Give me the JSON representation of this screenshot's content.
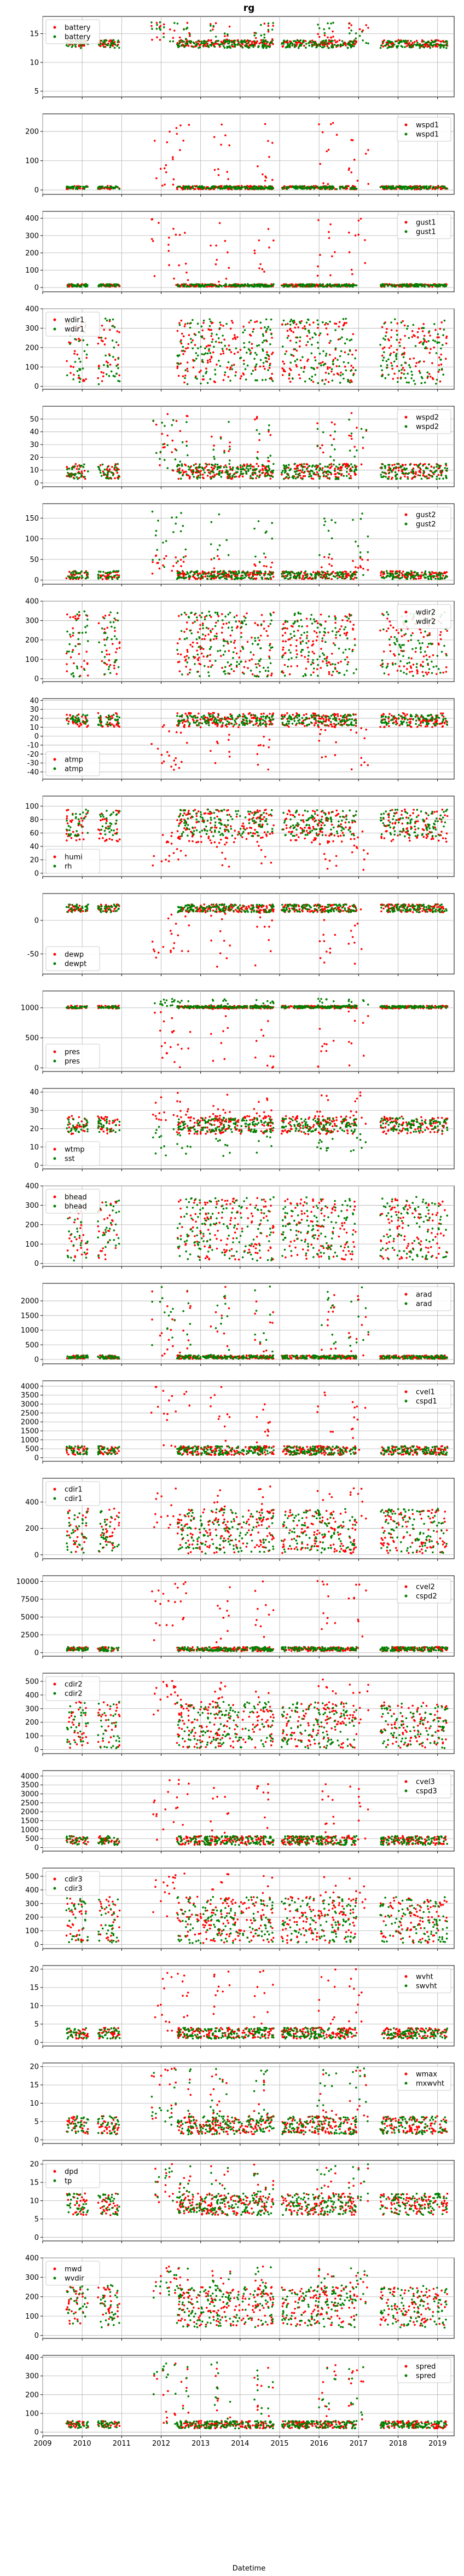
{
  "figure": {
    "title": "rg",
    "xlabel": "Datetime"
  },
  "chart_data": {
    "type": "scatter",
    "x_axis": {
      "type": "date",
      "range": [
        "2009-01-01",
        "2019-06-01"
      ],
      "ticks": [
        "2009",
        "2010",
        "2011",
        "2012",
        "2013",
        "2014",
        "2015",
        "2016",
        "2017",
        "2018",
        "2019"
      ]
    },
    "grid": true,
    "series_colors": {
      "first": "#ff0000",
      "second": "#008000"
    },
    "panels": [
      {
        "legend": [
          "battery",
          "battery"
        ],
        "legend_loc": "upper left",
        "ylim": [
          4,
          18
        ],
        "yticks": [
          "5",
          "10",
          "15"
        ],
        "level_red": 13.3,
        "level_green": 13.2,
        "spread_red": 0.6,
        "spread_green": 0.7,
        "spike_red": 17,
        "spike_green": 17,
        "outlier_mode": "both"
      },
      {
        "legend": [
          "wspd1",
          "wspd1"
        ],
        "legend_loc": "upper right",
        "ylim": [
          -15,
          260
        ],
        "yticks": [
          "0",
          "100",
          "200"
        ],
        "level_red": 8,
        "level_green": 8,
        "spread_red": 6,
        "spread_green": 5,
        "spike_red": 230,
        "spike_green": 60,
        "outlier_mode": "red"
      },
      {
        "legend": [
          "gust1",
          "gust1"
        ],
        "legend_loc": "upper right",
        "ylim": [
          -25,
          440
        ],
        "yticks": [
          "0",
          "100",
          "200",
          "300",
          "400"
        ],
        "level_red": 12,
        "level_green": 12,
        "spread_red": 8,
        "spread_green": 8,
        "spike_red": 400,
        "spike_green": 80,
        "outlier_mode": "red"
      },
      {
        "legend": [
          "wdir1",
          "wdir1"
        ],
        "legend_loc": "upper left",
        "ylim": [
          -15,
          400
        ],
        "yticks": [
          "0",
          "100",
          "200",
          "300",
          "400"
        ],
        "level_red": 180,
        "level_green": 180,
        "spread_red": 160,
        "spread_green": 170,
        "spike_red": 360,
        "spike_green": 360,
        "outlier_mode": "none"
      },
      {
        "legend": [
          "wspd2",
          "wspd2"
        ],
        "legend_loc": "upper right",
        "ylim": [
          -3,
          60
        ],
        "yticks": [
          "0",
          "10",
          "20",
          "30",
          "40",
          "50"
        ],
        "level_red": 9,
        "level_green": 9,
        "spread_red": 6,
        "spread_green": 6,
        "spike_red": 55,
        "spike_green": 50,
        "outlier_mode": "both"
      },
      {
        "legend": [
          "gust2",
          "gust2"
        ],
        "legend_loc": "upper right",
        "ylim": [
          -10,
          185
        ],
        "yticks": [
          "0",
          "50",
          "100",
          "150"
        ],
        "level_red": 12,
        "level_green": 12,
        "spread_red": 10,
        "spread_green": 10,
        "spike_red": 60,
        "spike_green": 170,
        "outlier_mode": "both"
      },
      {
        "legend": [
          "wdir2",
          "wdir2"
        ],
        "legend_loc": "upper right",
        "ylim": [
          -15,
          400
        ],
        "yticks": [
          "0",
          "100",
          "200",
          "300",
          "400"
        ],
        "level_red": 180,
        "level_green": 180,
        "spread_red": 165,
        "spread_green": 170,
        "spike_red": 360,
        "spike_green": 360,
        "outlier_mode": "none"
      },
      {
        "legend": [
          "atmp",
          "atmp"
        ],
        "legend_loc": "lower left",
        "ylim": [
          -48,
          42
        ],
        "yticks": [
          "-40",
          "-30",
          "-20",
          "-10",
          "0",
          "10",
          "20",
          "30",
          "40"
        ],
        "level_red": 18,
        "level_green": 18,
        "spread_red": 8,
        "spread_green": 6,
        "spike_red": -38,
        "spike_green": 35,
        "outlier_mode": "red"
      },
      {
        "legend": [
          "humi",
          "rh"
        ],
        "legend_loc": "lower left",
        "ylim": [
          -5,
          115
        ],
        "yticks": [
          "0",
          "20",
          "40",
          "60",
          "80",
          "100"
        ],
        "level_red": 70,
        "level_green": 75,
        "spread_red": 25,
        "spread_green": 20,
        "spike_red": 5,
        "spike_green": 100,
        "outlier_mode": "red"
      },
      {
        "legend": [
          "dewp",
          "dewpt"
        ],
        "legend_loc": "lower left",
        "ylim": [
          -80,
          40
        ],
        "yticks": [
          "-50",
          "0"
        ],
        "level_red": 18,
        "level_green": 18,
        "spread_red": 6,
        "spread_green": 6,
        "spike_red": -70,
        "spike_green": 30,
        "outlier_mode": "red"
      },
      {
        "legend": [
          "pres",
          "pres"
        ],
        "legend_loc": "lower left",
        "ylim": [
          -60,
          1280
        ],
        "yticks": [
          "0",
          "500",
          "1000"
        ],
        "level_red": 1012,
        "level_green": 1012,
        "spread_red": 25,
        "spread_green": 20,
        "spike_red": 0,
        "spike_green": 1150,
        "outlier_mode": "both"
      },
      {
        "legend": [
          "wtmp",
          "sst"
        ],
        "legend_loc": "lower left",
        "ylim": [
          -2,
          42
        ],
        "yticks": [
          "0",
          "10",
          "20",
          "30",
          "40"
        ],
        "level_red": 22,
        "level_green": 22,
        "spread_red": 5,
        "spread_green": 4,
        "spike_red": 40,
        "spike_green": 5,
        "outlier_mode": "both"
      },
      {
        "legend": [
          "bhead",
          "bhead"
        ],
        "legend_loc": "upper left",
        "ylim": [
          -15,
          400
        ],
        "yticks": [
          "0",
          "100",
          "200",
          "300",
          "400"
        ],
        "level_red": 180,
        "level_green": 180,
        "spread_red": 160,
        "spread_green": 165,
        "spike_red": 360,
        "spike_green": 360,
        "outlier_mode": "none"
      },
      {
        "legend": [
          "arad",
          "arad"
        ],
        "legend_loc": "upper right",
        "ylim": [
          -150,
          2600
        ],
        "yticks": [
          "0",
          "500",
          "1000",
          "1500",
          "2000"
        ],
        "level_red": 80,
        "level_green": 80,
        "spread_red": 60,
        "spread_green": 60,
        "spike_red": 2500,
        "spike_green": 2500,
        "outlier_mode": "both"
      },
      {
        "legend": [
          "cvel1",
          "cspd1"
        ],
        "legend_loc": "upper right",
        "ylim": [
          -200,
          4300
        ],
        "yticks": [
          "0",
          "500",
          "1000",
          "1500",
          "2000",
          "2500",
          "3000",
          "3500",
          "4000"
        ],
        "level_red": 400,
        "level_green": 400,
        "spread_red": 250,
        "spread_green": 250,
        "spike_red": 4000,
        "spike_green": 2500,
        "outlier_mode": "red"
      },
      {
        "legend": [
          "cdir1",
          "cdir1"
        ],
        "legend_loc": "upper left",
        "ylim": [
          -30,
          580
        ],
        "yticks": [
          "0",
          "200",
          "400"
        ],
        "level_red": 180,
        "level_green": 180,
        "spread_red": 170,
        "spread_green": 170,
        "spike_red": 520,
        "spike_green": 360,
        "outlier_mode": "red"
      },
      {
        "legend": [
          "cvel2",
          "cspd2"
        ],
        "legend_loc": "upper right",
        "ylim": [
          -500,
          10800
        ],
        "yticks": [
          "0",
          "2500",
          "5000",
          "7500",
          "10000"
        ],
        "level_red": 500,
        "level_green": 500,
        "spread_red": 300,
        "spread_green": 300,
        "spike_red": 10200,
        "spike_green": 3500,
        "outlier_mode": "red"
      },
      {
        "legend": [
          "cdir2",
          "cdir2"
        ],
        "legend_loc": "upper left",
        "ylim": [
          -30,
          560
        ],
        "yticks": [
          "0",
          "100",
          "200",
          "300",
          "400",
          "500"
        ],
        "level_red": 180,
        "level_green": 180,
        "spread_red": 170,
        "spread_green": 170,
        "spike_red": 520,
        "spike_green": 360,
        "outlier_mode": "red"
      },
      {
        "legend": [
          "cvel3",
          "cspd3"
        ],
        "legend_loc": "upper right",
        "ylim": [
          -200,
          4300
        ],
        "yticks": [
          "0",
          "500",
          "1000",
          "1500",
          "2000",
          "2500",
          "3000",
          "3500",
          "4000"
        ],
        "level_red": 400,
        "level_green": 400,
        "spread_red": 250,
        "spread_green": 250,
        "spike_red": 4000,
        "spike_green": 2500,
        "outlier_mode": "red"
      },
      {
        "legend": [
          "cdir3",
          "cdir3"
        ],
        "legend_loc": "upper left",
        "ylim": [
          -30,
          560
        ],
        "yticks": [
          "0",
          "100",
          "200",
          "300",
          "400",
          "500"
        ],
        "level_red": 180,
        "level_green": 180,
        "spread_red": 170,
        "spread_green": 170,
        "spike_red": 520,
        "spike_green": 360,
        "outlier_mode": "red"
      },
      {
        "legend": [
          "wvht",
          "swvht"
        ],
        "legend_loc": "upper right",
        "ylim": [
          -1,
          21
        ],
        "yticks": [
          "0",
          "5",
          "10",
          "15",
          "20"
        ],
        "level_red": 2.5,
        "level_green": 2.5,
        "spread_red": 1.5,
        "spread_green": 1.5,
        "spike_red": 20,
        "spike_green": 12,
        "outlier_mode": "red"
      },
      {
        "legend": [
          "wmax",
          "mxwvht"
        ],
        "legend_loc": "upper right",
        "ylim": [
          -1,
          21
        ],
        "yticks": [
          "0",
          "5",
          "10",
          "15",
          "20"
        ],
        "level_red": 4,
        "level_green": 4,
        "spread_red": 2.5,
        "spread_green": 2.5,
        "spike_red": 20,
        "spike_green": 20,
        "outlier_mode": "both"
      },
      {
        "legend": [
          "dpd",
          "tp"
        ],
        "legend_loc": "upper left",
        "ylim": [
          -1,
          21
        ],
        "yticks": [
          "0",
          "5",
          "10",
          "15",
          "20"
        ],
        "level_red": 9,
        "level_green": 9,
        "spread_red": 3,
        "spread_green": 3,
        "spike_red": 20,
        "spike_green": 20,
        "outlier_mode": "both"
      },
      {
        "legend": [
          "mwd",
          "wvdir"
        ],
        "legend_loc": "upper left",
        "ylim": [
          -15,
          400
        ],
        "yticks": [
          "0",
          "100",
          "200",
          "300",
          "400"
        ],
        "level_red": 150,
        "level_green": 150,
        "spread_red": 100,
        "spread_green": 110,
        "spike_red": 360,
        "spike_green": 360,
        "outlier_mode": "both"
      },
      {
        "legend": [
          "spred",
          "spred"
        ],
        "legend_loc": "upper right",
        "ylim": [
          -20,
          410
        ],
        "yticks": [
          "0",
          "100",
          "200",
          "300",
          "400"
        ],
        "level_red": 40,
        "level_green": 40,
        "spread_red": 20,
        "spread_green": 20,
        "spike_red": 380,
        "spike_green": 380,
        "outlier_mode": "both"
      }
    ],
    "data_coverage_years": [
      [
        2009.6,
        2010.15
      ],
      [
        2010.4,
        2010.95
      ],
      [
        2012.4,
        2014.85
      ],
      [
        2015.05,
        2016.95
      ],
      [
        2017.55,
        2019.25
      ]
    ],
    "anomaly_years": [
      2012.0,
      2012.5,
      2013.5,
      2014.6,
      2016.2,
      2017.0
    ]
  }
}
